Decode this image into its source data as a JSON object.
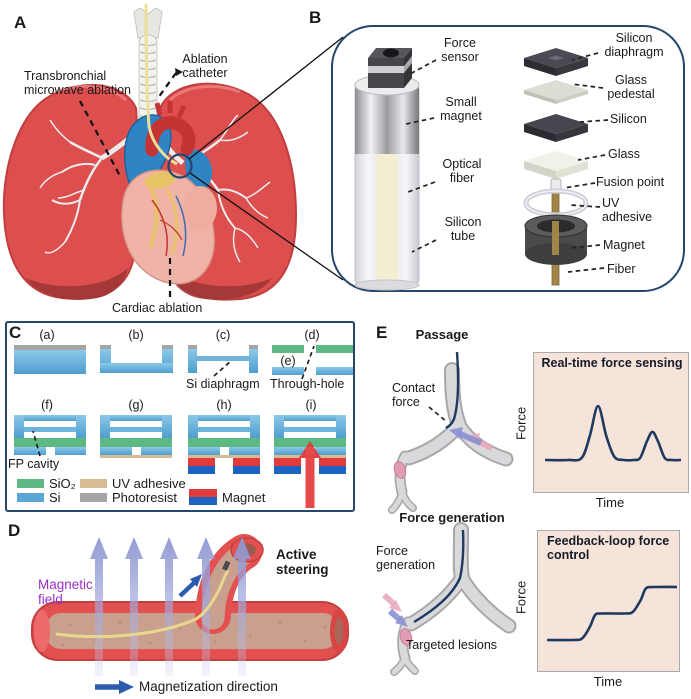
{
  "figure": {
    "panel_letters": {
      "a": "A",
      "b": "B",
      "c": "C",
      "d": "D",
      "e": "E"
    }
  },
  "colors": {
    "outline_navy": "#24476b",
    "curve_navy": "#1e3a5f",
    "chart_background": "#f6e3da",
    "magnetic_field_text": "#9b30c8",
    "lung_red": "#dd4e4e",
    "vessel_red": "#e35050",
    "field_arrow_periwinkle": "#9aa3d8",
    "magnetization_blue": "#2b5cad"
  },
  "panel_a": {
    "annotations": {
      "transbronchial": "Transbronchial\nmicrowave ablation",
      "ablation_catheter": "Ablation\ncatheter",
      "cardiac_ablation": "Cardiac ablation"
    }
  },
  "panel_b": {
    "labels": {
      "force_sensor": "Force\nsensor",
      "small_magnet": "Small\nmagnet",
      "optical_fiber": "Optical\nfiber",
      "silicon_tube": "Silicon\ntube",
      "silicon_diaphragm": "Silicon\ndiaphragm",
      "glass_pedestal": "Glass\npedestal",
      "silicon": "Silicon",
      "glass": "Glass",
      "fusion_point": "Fusion point",
      "uv_adhesive": "UV\nadhesive",
      "magnet": "Magnet",
      "fiber": "Fiber"
    }
  },
  "panel_c": {
    "steps": [
      "(a)",
      "(b)",
      "(c)",
      "(d)",
      "(e)",
      "(f)",
      "(g)",
      "(h)",
      "(i)"
    ],
    "annotations": {
      "si_diaphragm": "Si diaphragm",
      "through_hole": "Through-hole",
      "fp_cavity": "FP cavity"
    },
    "legend": [
      {
        "label": "SiO₂",
        "color": "#5eb884"
      },
      {
        "label": "Si",
        "color": "#5aa7d6"
      },
      {
        "label": "UV adhesive",
        "color": "#d8ba93"
      },
      {
        "label": "Photoresist",
        "color": "#a5a5a5"
      },
      {
        "label": "Magnet",
        "color_top": "#e23b3b",
        "color_bottom": "#1e62c2"
      }
    ]
  },
  "panel_d": {
    "labels": {
      "magnetic_field": "Magnetic\nfield",
      "active_steering": "Active\nsteering",
      "magnetization_direction": "Magnetization direction"
    }
  },
  "panel_e": {
    "headings": {
      "passage": "Passage",
      "force_generation": "Force generation"
    },
    "labels": {
      "contact_force": "Contact\nforce",
      "force_generation": "Force\ngeneration",
      "targeted_lesions": "Targeted lesions"
    }
  },
  "chart_data": [
    {
      "type": "line",
      "title": "Real-time force sensing",
      "xlabel": "Time",
      "ylabel": "Force",
      "grid": false,
      "axis_ticks": "none (conceptual sketch, unlabeled axes)",
      "legend_position": "none",
      "series": [
        {
          "name": "sensed force",
          "description": "flat baseline with two bell-shaped transient peaks; first peak about twice the height of the second",
          "points_normalized": [
            [
              0,
              0
            ],
            [
              0.17,
              0
            ],
            [
              0.27,
              0.04
            ],
            [
              0.33,
              0.45
            ],
            [
              0.39,
              1
            ],
            [
              0.45,
              0.45
            ],
            [
              0.51,
              0.06
            ],
            [
              0.58,
              0
            ],
            [
              0.65,
              0
            ],
            [
              0.7,
              0.04
            ],
            [
              0.75,
              0.35
            ],
            [
              0.79,
              0.52
            ],
            [
              0.83,
              0.35
            ],
            [
              0.88,
              0.04
            ],
            [
              0.93,
              0
            ],
            [
              1,
              0
            ]
          ]
        }
      ]
    },
    {
      "type": "line",
      "title": "Feedback-loop force control",
      "xlabel": "Time",
      "ylabel": "Force",
      "grid": false,
      "axis_ticks": "none (conceptual sketch, unlabeled axes)",
      "legend_position": "none",
      "series": [
        {
          "name": "controlled force",
          "description": "smooth two-step staircase increase with plateaus",
          "points_normalized": [
            [
              0,
              0
            ],
            [
              0.2,
              0
            ],
            [
              0.27,
              0.03
            ],
            [
              0.33,
              0.25
            ],
            [
              0.37,
              0.47
            ],
            [
              0.42,
              0.5
            ],
            [
              0.6,
              0.5
            ],
            [
              0.66,
              0.53
            ],
            [
              0.72,
              0.75
            ],
            [
              0.76,
              0.97
            ],
            [
              0.82,
              1
            ],
            [
              1,
              1
            ]
          ]
        }
      ]
    }
  ]
}
